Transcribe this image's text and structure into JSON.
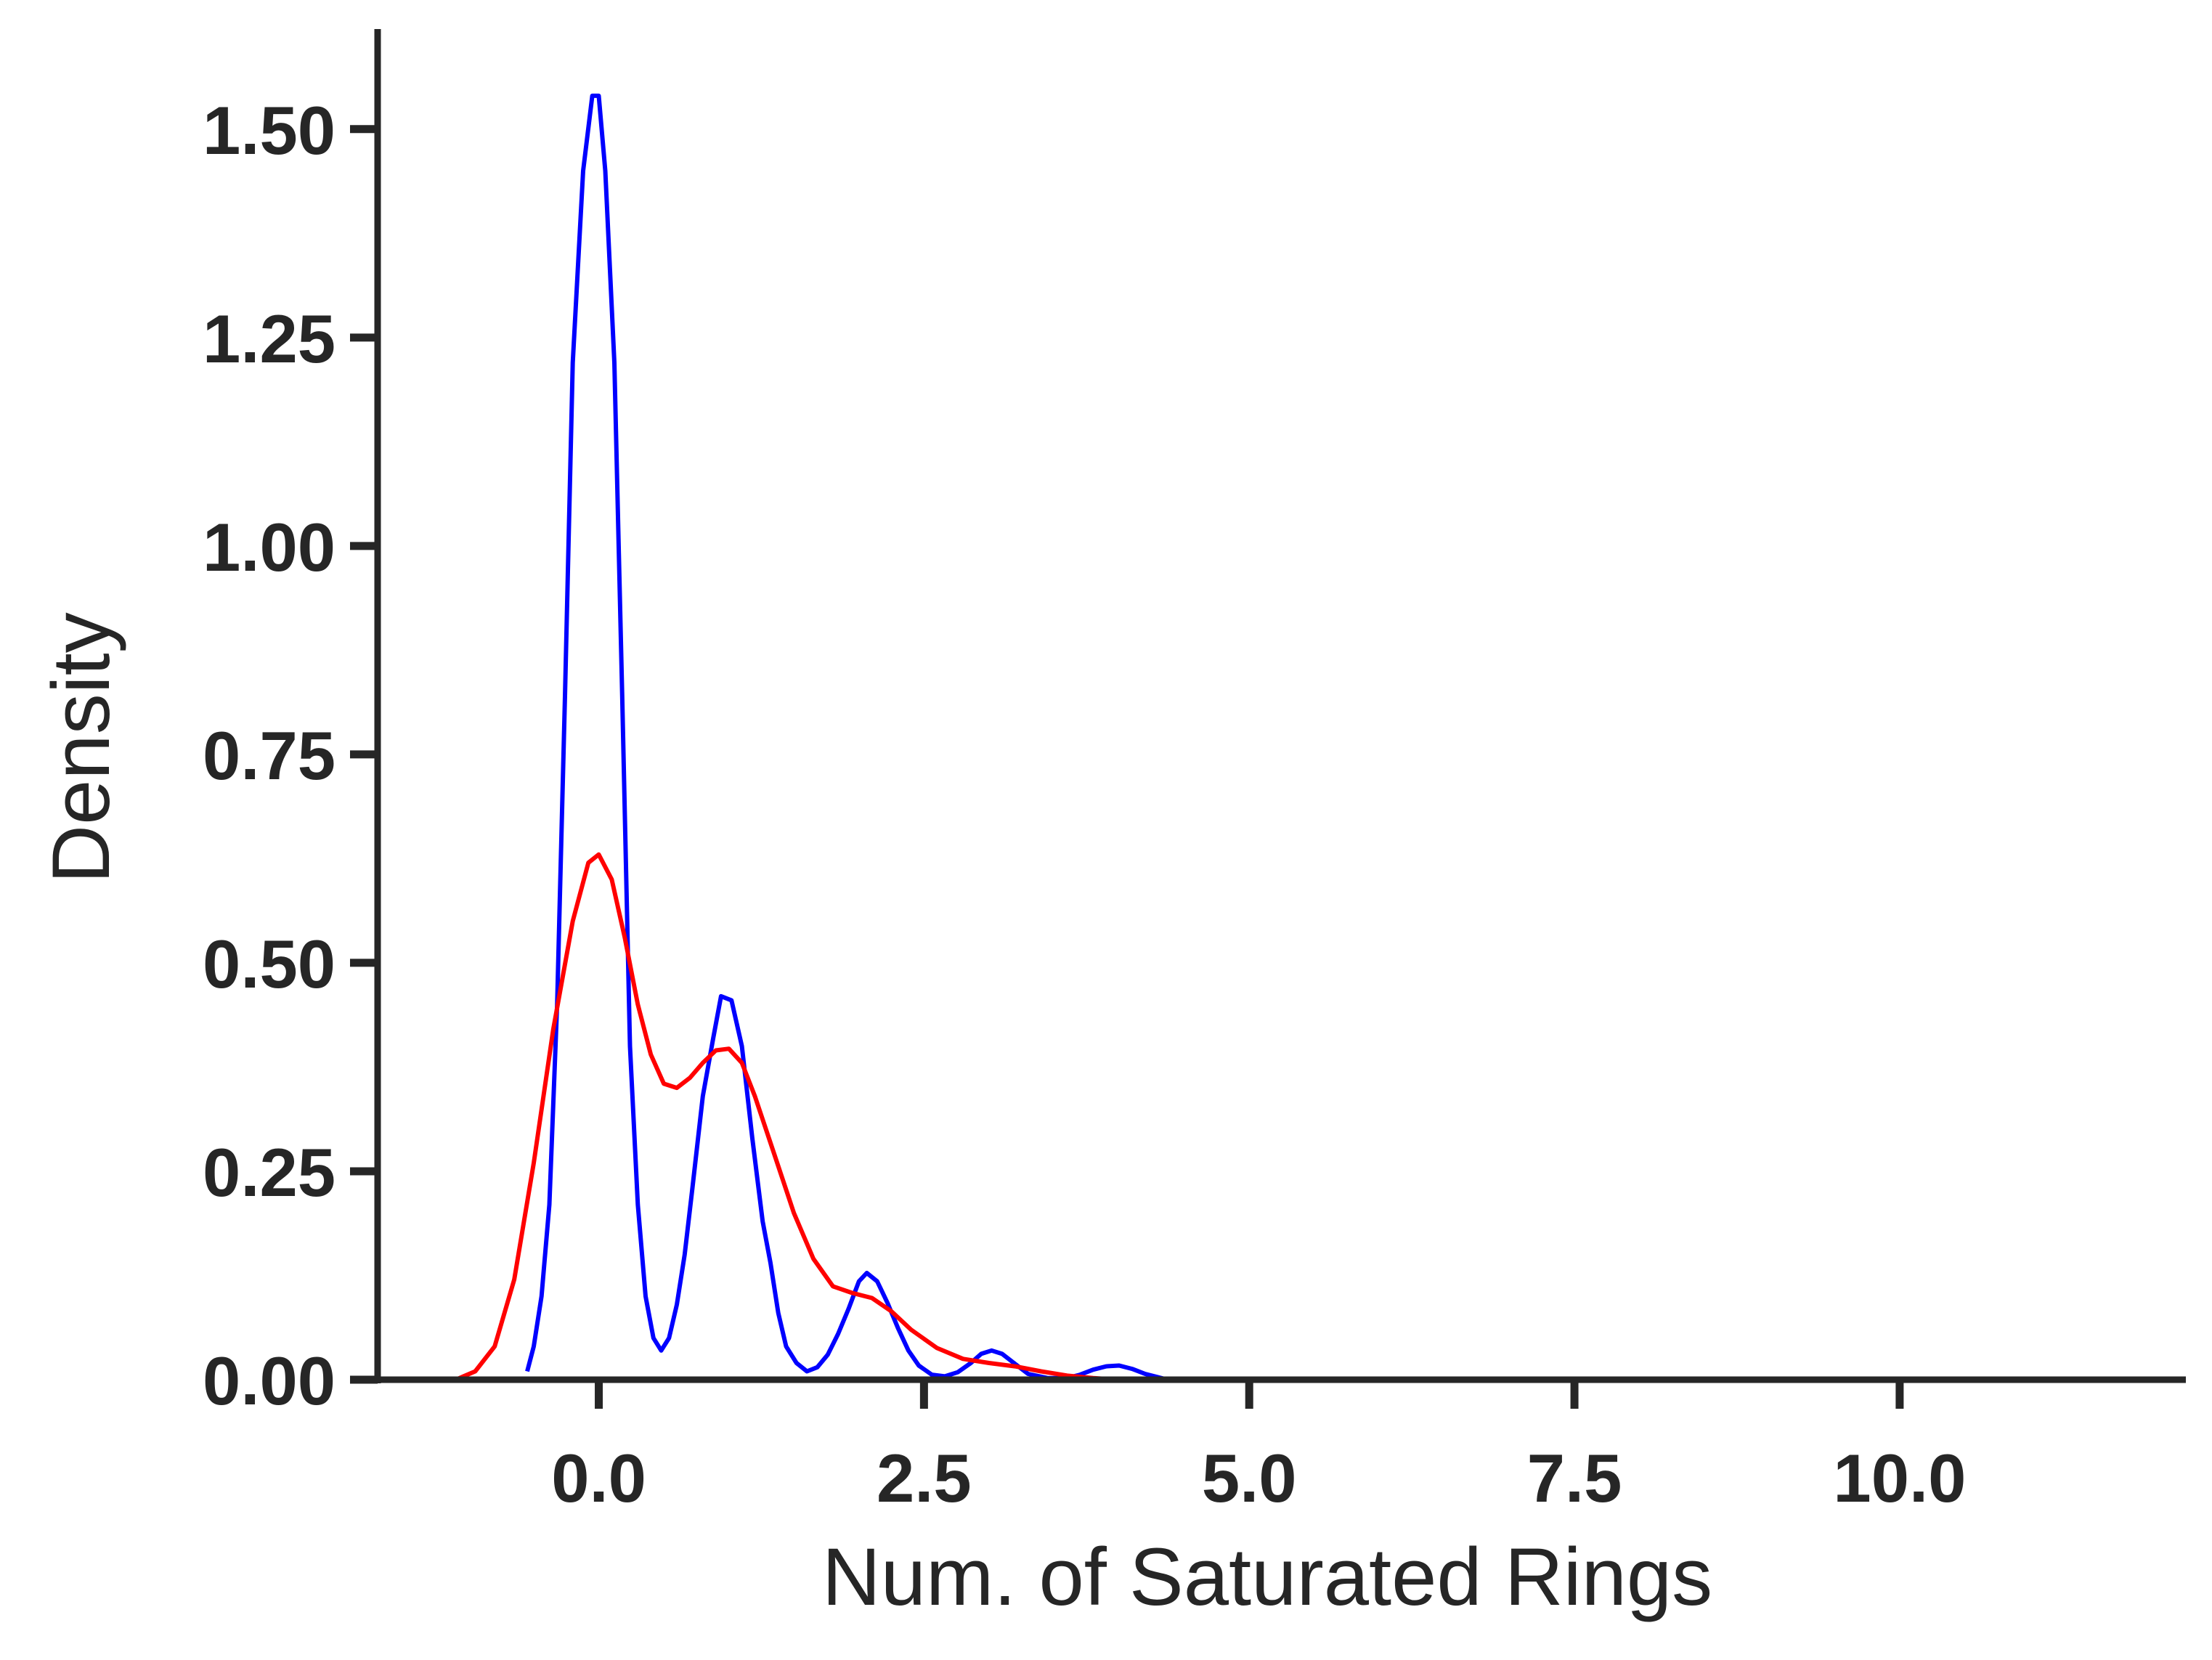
{
  "chart_data": {
    "type": "line",
    "title": "",
    "xlabel": "Num. of Saturated Rings",
    "ylabel": "Density",
    "xlim": [
      -1.7,
      12.2
    ],
    "ylim": [
      0,
      1.62
    ],
    "x_ticks": [
      0.0,
      2.5,
      5.0,
      7.5,
      10.0
    ],
    "x_tick_labels": [
      "0.0",
      "2.5",
      "5.0",
      "7.5",
      "10.0"
    ],
    "y_ticks": [
      0.0,
      0.25,
      0.5,
      0.75,
      1.0,
      1.25,
      1.5
    ],
    "y_tick_labels": [
      "0.00",
      "0.25",
      "0.50",
      "0.75",
      "1.00",
      "1.25",
      "1.50"
    ],
    "grid": false,
    "legend": "none",
    "series": [
      {
        "color": "#0000ff",
        "points": [
          [
            -0.55,
            0.01
          ],
          [
            -0.5,
            0.04
          ],
          [
            -0.44,
            0.1
          ],
          [
            -0.38,
            0.21
          ],
          [
            -0.32,
            0.45
          ],
          [
            -0.26,
            0.82
          ],
          [
            -0.2,
            1.22
          ],
          [
            -0.12,
            1.45
          ],
          [
            -0.05,
            1.54
          ],
          [
            0.0,
            1.54
          ],
          [
            0.05,
            1.45
          ],
          [
            0.12,
            1.22
          ],
          [
            0.18,
            0.82
          ],
          [
            0.24,
            0.4
          ],
          [
            0.3,
            0.21
          ],
          [
            0.36,
            0.1
          ],
          [
            0.42,
            0.05
          ],
          [
            0.48,
            0.035
          ],
          [
            0.54,
            0.05
          ],
          [
            0.6,
            0.09
          ],
          [
            0.66,
            0.15
          ],
          [
            0.72,
            0.23
          ],
          [
            0.8,
            0.34
          ],
          [
            0.88,
            0.41
          ],
          [
            0.94,
            0.46
          ],
          [
            1.02,
            0.455
          ],
          [
            1.1,
            0.4
          ],
          [
            1.18,
            0.29
          ],
          [
            1.26,
            0.19
          ],
          [
            1.32,
            0.14
          ],
          [
            1.38,
            0.08
          ],
          [
            1.44,
            0.04
          ],
          [
            1.52,
            0.02
          ],
          [
            1.6,
            0.01
          ],
          [
            1.68,
            0.015
          ],
          [
            1.76,
            0.03
          ],
          [
            1.84,
            0.055
          ],
          [
            1.92,
            0.085
          ],
          [
            2.0,
            0.118
          ],
          [
            2.06,
            0.128
          ],
          [
            2.14,
            0.118
          ],
          [
            2.22,
            0.092
          ],
          [
            2.3,
            0.062
          ],
          [
            2.38,
            0.035
          ],
          [
            2.46,
            0.017
          ],
          [
            2.56,
            0.006
          ],
          [
            2.66,
            0.004
          ],
          [
            2.76,
            0.009
          ],
          [
            2.86,
            0.02
          ],
          [
            2.94,
            0.031
          ],
          [
            3.02,
            0.035
          ],
          [
            3.1,
            0.031
          ],
          [
            3.2,
            0.019
          ],
          [
            3.3,
            0.007
          ],
          [
            3.45,
            0.002
          ],
          [
            3.6,
            0.002
          ],
          [
            3.7,
            0.006
          ],
          [
            3.8,
            0.012
          ],
          [
            3.9,
            0.016
          ],
          [
            4.0,
            0.017
          ],
          [
            4.1,
            0.013
          ],
          [
            4.2,
            0.007
          ],
          [
            4.35,
            0.001
          ],
          [
            4.5,
            0.0
          ]
        ]
      },
      {
        "color": "#ff0000",
        "points": [
          [
            -1.1,
            0.0
          ],
          [
            -0.95,
            0.01
          ],
          [
            -0.8,
            0.04
          ],
          [
            -0.65,
            0.12
          ],
          [
            -0.5,
            0.26
          ],
          [
            -0.35,
            0.42
          ],
          [
            -0.2,
            0.55
          ],
          [
            -0.08,
            0.62
          ],
          [
            0.0,
            0.63
          ],
          [
            0.1,
            0.6
          ],
          [
            0.2,
            0.53
          ],
          [
            0.3,
            0.45
          ],
          [
            0.4,
            0.39
          ],
          [
            0.5,
            0.355
          ],
          [
            0.6,
            0.35
          ],
          [
            0.7,
            0.362
          ],
          [
            0.8,
            0.38
          ],
          [
            0.9,
            0.395
          ],
          [
            1.0,
            0.397
          ],
          [
            1.1,
            0.38
          ],
          [
            1.2,
            0.34
          ],
          [
            1.35,
            0.27
          ],
          [
            1.5,
            0.2
          ],
          [
            1.65,
            0.145
          ],
          [
            1.8,
            0.112
          ],
          [
            1.95,
            0.104
          ],
          [
            2.1,
            0.098
          ],
          [
            2.25,
            0.082
          ],
          [
            2.4,
            0.06
          ],
          [
            2.6,
            0.038
          ],
          [
            2.8,
            0.025
          ],
          [
            3.0,
            0.02
          ],
          [
            3.2,
            0.016
          ],
          [
            3.4,
            0.01
          ],
          [
            3.6,
            0.005
          ],
          [
            3.8,
            0.002
          ],
          [
            4.0,
            0.0
          ]
        ]
      }
    ]
  }
}
